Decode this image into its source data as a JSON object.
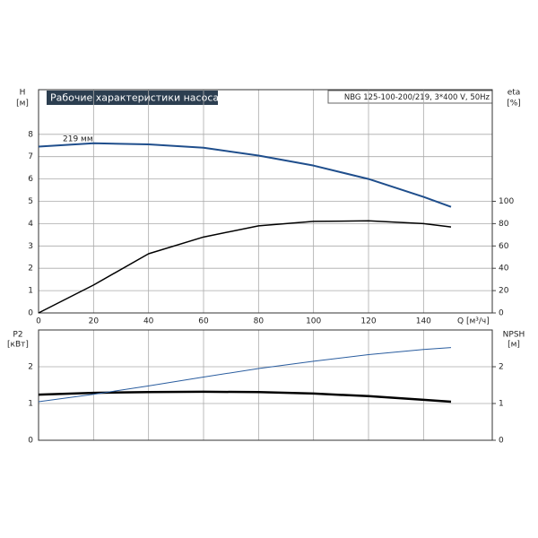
{
  "chart_data": [
    {
      "type": "line",
      "title": "Рабочие характеристики насоса",
      "subtitle": "NBG 125-100-200/219, 3*400 V, 50Hz",
      "xlabel": "Q [м³/ч]",
      "ylabel": "H",
      "ylabel_unit": "[м]",
      "y2label": "eta",
      "y2label_unit": "[%]",
      "x": [
        0,
        20,
        40,
        60,
        80,
        100,
        120,
        140,
        150
      ],
      "xlim": [
        0,
        165
      ],
      "xticks": [
        0,
        20,
        40,
        60,
        80,
        100,
        120,
        140
      ],
      "ylim": [
        0,
        10
      ],
      "yticks": [
        0,
        1,
        2,
        3,
        4,
        5,
        6,
        7,
        8
      ],
      "y2lim": [
        0,
        200
      ],
      "y2ticks": [
        0,
        20,
        40,
        60,
        80,
        100
      ],
      "grid": true,
      "series": [
        {
          "name": "219 мм",
          "color": "#1f4e8c",
          "values": [
            7.45,
            7.6,
            7.55,
            7.4,
            7.05,
            6.6,
            6.0,
            5.2,
            4.75
          ]
        },
        {
          "color": "#000000",
          "axis": "y2",
          "values": [
            0,
            25,
            53,
            68,
            78,
            82,
            82.5,
            80,
            77
          ]
        }
      ]
    },
    {
      "type": "line",
      "ylabel": "P2",
      "ylabel_unit": "[кВт]",
      "y2label": "NPSH",
      "y2label_unit": "[м]",
      "x": [
        0,
        20,
        40,
        60,
        80,
        100,
        120,
        140,
        150
      ],
      "xlim": [
        0,
        165
      ],
      "ylim": [
        0,
        3
      ],
      "yticks": [
        0,
        1,
        2
      ],
      "y2lim": [
        0,
        3
      ],
      "y2ticks": [
        0,
        1,
        2
      ],
      "grid": true,
      "series": [
        {
          "color": "#000000",
          "values": [
            1.24,
            1.29,
            1.31,
            1.32,
            1.31,
            1.27,
            1.2,
            1.1,
            1.05
          ]
        },
        {
          "color": "#2a5d9f",
          "axis": "y2",
          "values": [
            1.05,
            1.25,
            1.48,
            1.72,
            1.95,
            2.15,
            2.33,
            2.47,
            2.52
          ]
        }
      ]
    }
  ]
}
